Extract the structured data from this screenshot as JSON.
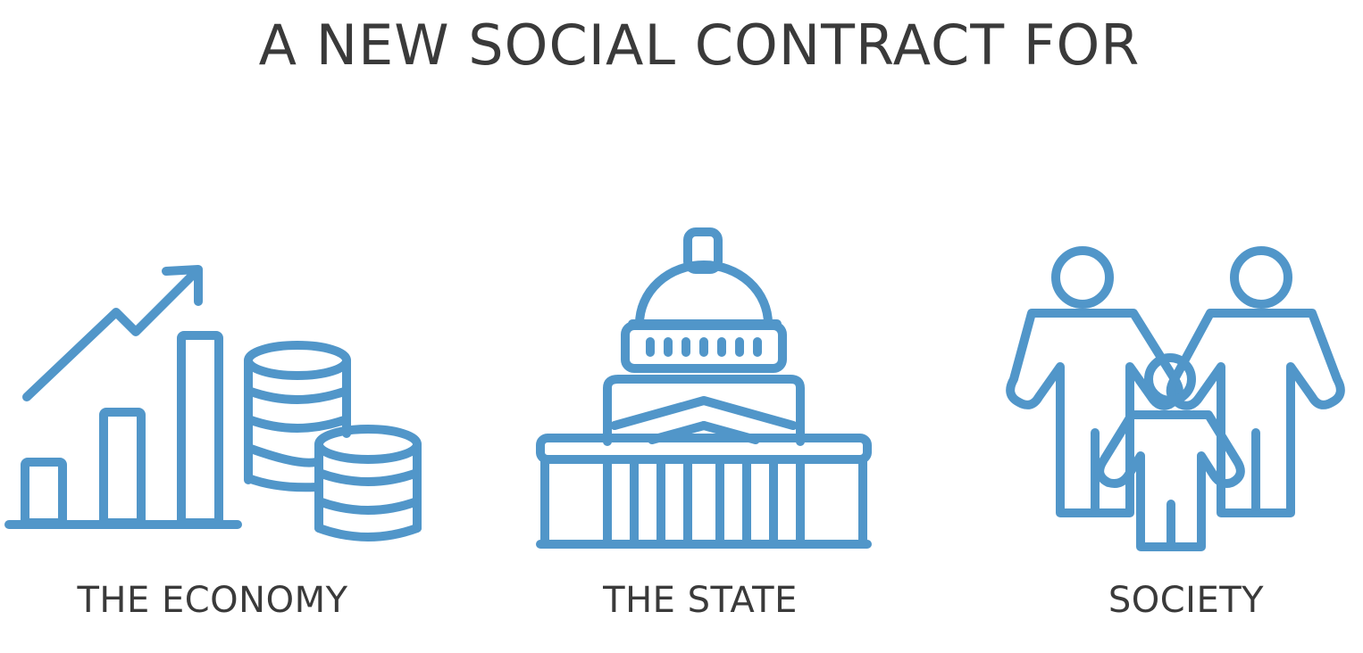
{
  "title": "A NEW SOCIAL CONTRACT FOR",
  "accent_color": "#5196c9",
  "text_color": "#3a3a3a",
  "items": [
    {
      "label": "THE ECONOMY",
      "icon": "economy-chart-coins-icon"
    },
    {
      "label": "THE STATE",
      "icon": "capitol-building-icon"
    },
    {
      "label": "SOCIETY",
      "icon": "family-icon"
    }
  ]
}
